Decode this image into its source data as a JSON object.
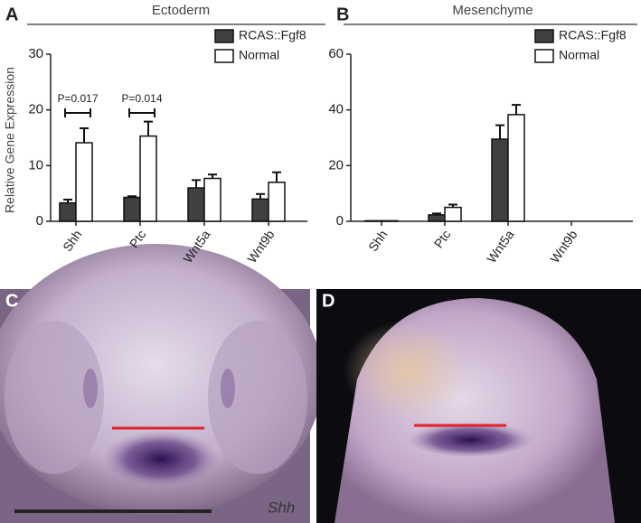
{
  "chart_data": [
    {
      "type": "bar",
      "label": "A",
      "title": "Ectoderm",
      "ylabel": "Relative Gene Expression",
      "categories": [
        "Shh",
        "Ptc",
        "Wnt5a",
        "Wnt9b"
      ],
      "series": [
        {
          "name": "RCAS::Fgf8",
          "color": "#404040",
          "values": [
            3.3,
            4.3,
            6,
            4
          ],
          "errors": [
            0.6,
            0.2,
            1.4,
            0.9
          ]
        },
        {
          "name": "Normal",
          "color": "#ffffff",
          "values": [
            14.1,
            15.3,
            7.7,
            7
          ],
          "errors": [
            2.6,
            2.6,
            0.7,
            1.8
          ]
        }
      ],
      "annotations": [
        "P=0.017",
        "P=0.014"
      ],
      "ylim": [
        0,
        30
      ],
      "yticks": [
        0,
        10,
        20,
        30
      ],
      "legend": "upper right"
    },
    {
      "type": "bar",
      "label": "B",
      "title": "Mesenchyme",
      "categories": [
        "Shh",
        "Ptc",
        "Wnt5a",
        "Wnt9b"
      ],
      "series": [
        {
          "name": "RCAS::Fgf8",
          "color": "#404040",
          "values": [
            0.2,
            2.3,
            29.5,
            0
          ],
          "errors": [
            0,
            0.5,
            5,
            0
          ]
        },
        {
          "name": "Normal",
          "color": "#ffffff",
          "values": [
            0.2,
            5,
            38.3,
            0
          ],
          "errors": [
            0,
            1,
            3.5,
            0
          ]
        }
      ],
      "ylim": [
        0,
        60
      ],
      "yticks": [
        0,
        20,
        40,
        60
      ],
      "legend": "upper right"
    }
  ],
  "images": [
    {
      "label": "C",
      "caption": "Shh"
    },
    {
      "label": "D"
    }
  ]
}
